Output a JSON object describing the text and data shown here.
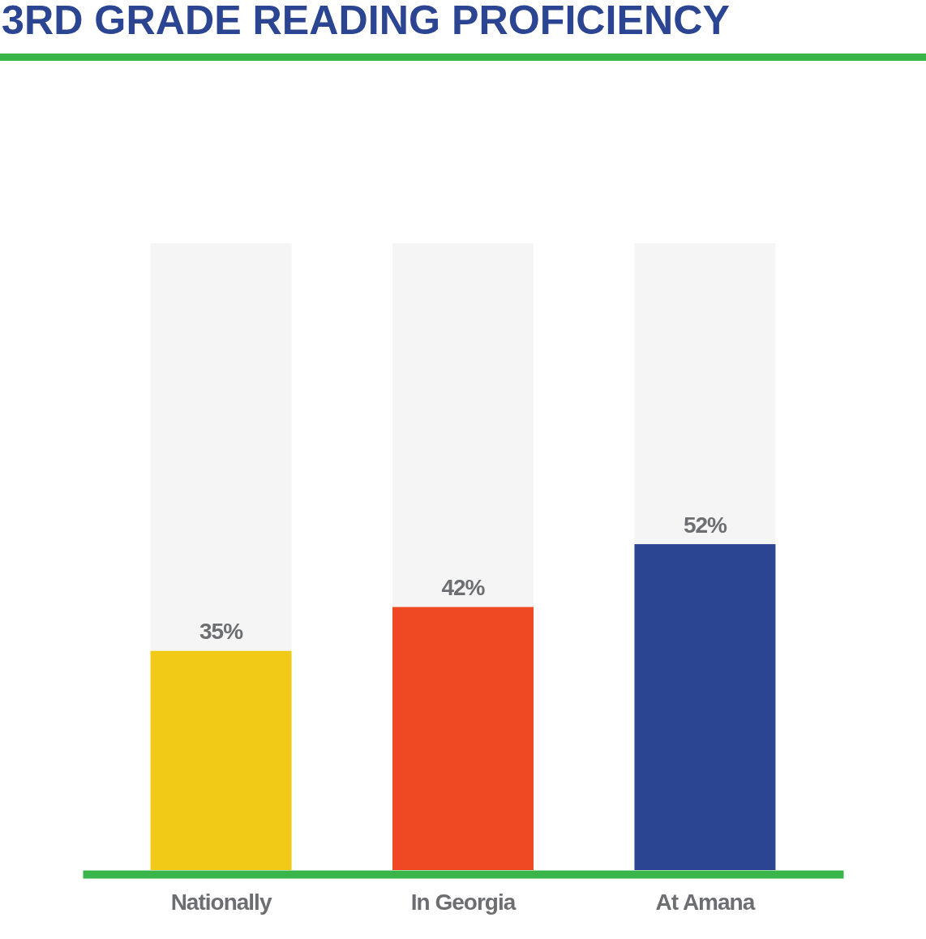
{
  "chart_data": {
    "type": "bar",
    "title": "3RD GRADE READING PROFICIENCY",
    "categories": [
      "Nationally",
      "In Georgia",
      "At Amana"
    ],
    "stacked": true,
    "ylim": [
      0,
      100
    ],
    "tick_labels": "x",
    "series": [
      {
        "colors": [
          "#f0ca17",
          "#ee4923",
          "#2c4593"
        ],
        "values": [
          35,
          42,
          52
        ],
        "value_labels": [
          "35%",
          "42%",
          "52%"
        ]
      },
      {
        "color": "#f4f5f4",
        "values": [
          65,
          58,
          48
        ]
      }
    ]
  }
}
